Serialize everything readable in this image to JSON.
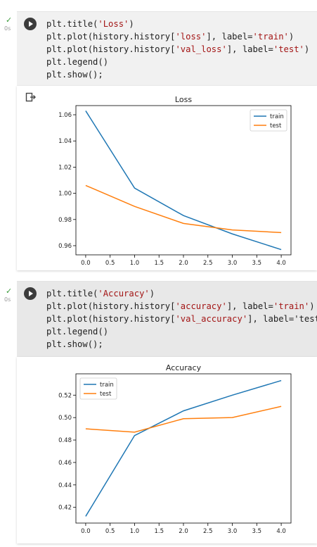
{
  "cells": [
    {
      "status": "✓",
      "runtime": "0s",
      "code_lines": [
        [
          {
            "t": "plt.title("
          },
          {
            "t": "'Loss'",
            "s": 1
          },
          {
            "t": ")"
          }
        ],
        [
          {
            "t": "plt.plot(history.history["
          },
          {
            "t": "'loss'",
            "s": 1
          },
          {
            "t": "], label="
          },
          {
            "t": "'train'",
            "s": 1
          },
          {
            "t": ")"
          }
        ],
        [
          {
            "t": "plt.plot(history.history["
          },
          {
            "t": "'val_loss'",
            "s": 1
          },
          {
            "t": "], label="
          },
          {
            "t": "'test'",
            "s": 1
          },
          {
            "t": ")"
          }
        ],
        [
          {
            "t": "plt.legend()"
          }
        ],
        [
          {
            "t": "plt.show();"
          }
        ]
      ]
    },
    {
      "status": "✓",
      "runtime": "0s",
      "code_lines": [
        [
          {
            "t": "plt.title("
          },
          {
            "t": "'Accuracy'",
            "s": 1
          },
          {
            "t": ")"
          }
        ],
        [
          {
            "t": "plt.plot(history.history["
          },
          {
            "t": "'accuracy'",
            "s": 1
          },
          {
            "t": "], label="
          },
          {
            "t": "'train'",
            "s": 1
          },
          {
            "t": ")"
          }
        ],
        [
          {
            "t": "plt.plot(history.history["
          },
          {
            "t": "'val_accuracy'",
            "s": 1
          },
          {
            "t": "], label="
          },
          {
            "t": "'test"
          }
        ],
        [
          {
            "t": "plt.legend()"
          }
        ],
        [
          {
            "t": "plt.show();"
          }
        ]
      ]
    }
  ],
  "chart_data": [
    {
      "type": "line",
      "title": "Loss",
      "x": [
        0,
        1,
        2,
        3,
        4
      ],
      "series": [
        {
          "name": "train",
          "color": "#1f77b4",
          "values": [
            1.063,
            1.004,
            0.983,
            0.969,
            0.957
          ]
        },
        {
          "name": "test",
          "color": "#ff7f0e",
          "values": [
            1.006,
            0.99,
            0.977,
            0.972,
            0.97
          ]
        }
      ],
      "xlim": [
        -0.2,
        4.2
      ],
      "ylim": [
        0.953,
        1.067
      ],
      "xticks": [
        "0.0",
        "0.5",
        "1.0",
        "1.5",
        "2.0",
        "2.5",
        "3.0",
        "3.5",
        "4.0"
      ],
      "xtick_values": [
        0,
        0.5,
        1,
        1.5,
        2,
        2.5,
        3,
        3.5,
        4
      ],
      "yticks": [
        "0.96",
        "0.98",
        "1.00",
        "1.02",
        "1.04",
        "1.06"
      ],
      "ytick_values": [
        0.96,
        0.98,
        1.0,
        1.02,
        1.04,
        1.06
      ],
      "legend": "top-right",
      "grid": false
    },
    {
      "type": "line",
      "title": "Accuracy",
      "x": [
        0,
        1,
        2,
        3,
        4
      ],
      "series": [
        {
          "name": "train",
          "color": "#1f77b4",
          "values": [
            0.412,
            0.484,
            0.506,
            0.52,
            0.533
          ]
        },
        {
          "name": "test",
          "color": "#ff7f0e",
          "values": [
            0.49,
            0.487,
            0.499,
            0.5,
            0.51
          ]
        }
      ],
      "xlim": [
        -0.2,
        4.2
      ],
      "ylim": [
        0.406,
        0.539
      ],
      "xticks": [
        "0.0",
        "0.5",
        "1.0",
        "1.5",
        "2.0",
        "2.5",
        "3.0",
        "3.5",
        "4.0"
      ],
      "xtick_values": [
        0,
        0.5,
        1,
        1.5,
        2,
        2.5,
        3,
        3.5,
        4
      ],
      "yticks": [
        "0.42",
        "0.44",
        "0.46",
        "0.48",
        "0.50",
        "0.52"
      ],
      "ytick_values": [
        0.42,
        0.44,
        0.46,
        0.48,
        0.5,
        0.52
      ],
      "legend": "top-left",
      "grid": false
    }
  ]
}
